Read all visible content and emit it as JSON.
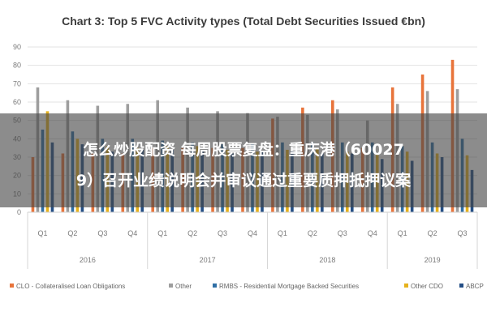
{
  "colors": {
    "CLO": "#e8743b",
    "Other": "#9e9e9e",
    "RMBS": "#2f6fa5",
    "OtherCDO": "#e6b21d",
    "ABCP": "#244f86"
  },
  "chart_data": {
    "type": "bar",
    "title": "Chart 3: Top 5 FVC Activity types (Total Debt Securities Issued €bn)",
    "xlabel": "",
    "ylabel": "",
    "ylim": [
      0,
      90
    ],
    "yticks": [
      "0",
      "10",
      "20",
      "30",
      "40",
      "50",
      "60",
      "70",
      "80",
      "90"
    ],
    "categories": [
      "Q1",
      "Q2",
      "Q3",
      "Q4",
      "Q1",
      "Q2",
      "Q3",
      "Q4",
      "Q1",
      "Q2",
      "Q3",
      "Q4",
      "Q1",
      "Q2",
      "Q3"
    ],
    "year_groups": [
      {
        "label": "2016",
        "start": 0,
        "count": 4
      },
      {
        "label": "2017",
        "start": 4,
        "count": 4
      },
      {
        "label": "2018",
        "start": 8,
        "count": 4
      },
      {
        "label": "2019",
        "start": 12,
        "count": 3
      }
    ],
    "grid": true,
    "legend_position": "bottom",
    "series": [
      {
        "key": "CLO",
        "name": "CLO - Collateralised Loan Obligations",
        "values": [
          30,
          32,
          32,
          32,
          35,
          35,
          35,
          35,
          51,
          57,
          61,
          35,
          68,
          75,
          83
        ]
      },
      {
        "key": "Other",
        "name": "Other",
        "values": [
          68,
          61,
          58,
          59,
          61,
          57,
          55,
          54,
          52,
          53,
          56,
          50,
          59,
          66,
          67
        ]
      },
      {
        "key": "RMBS",
        "name": "RMBS - Residential Mortgage Backed Securities",
        "values": [
          45,
          44,
          40,
          40,
          39,
          38,
          37,
          37,
          38,
          38,
          38,
          38,
          36,
          38,
          40
        ]
      },
      {
        "key": "OtherCDO",
        "name": "Other CDO",
        "values": [
          55,
          40,
          36,
          35,
          36,
          36,
          34,
          33,
          34,
          35,
          33,
          32,
          33,
          32,
          31
        ]
      },
      {
        "key": "ABCP",
        "name": "ABCP",
        "values": [
          38,
          37,
          33,
          34,
          34,
          33,
          32,
          33,
          33,
          32,
          32,
          29,
          28,
          30,
          23
        ]
      }
    ]
  },
  "overlay": {
    "line1": "怎么炒股配资 每周股票复盘：重庆港（60027",
    "line2": "9）召开业绩说明会并审议通过重要质押抵押议案"
  }
}
